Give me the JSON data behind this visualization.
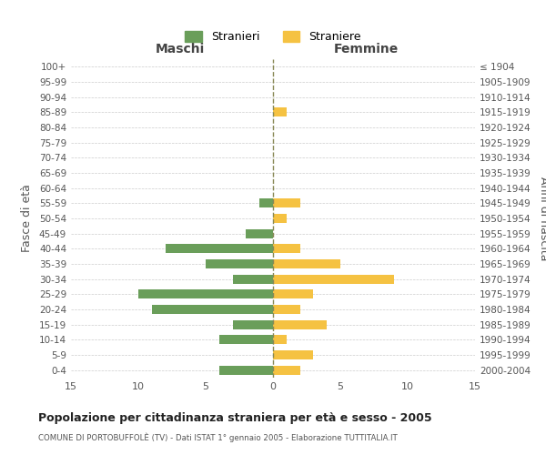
{
  "age_groups": [
    "100+",
    "95-99",
    "90-94",
    "85-89",
    "80-84",
    "75-79",
    "70-74",
    "65-69",
    "60-64",
    "55-59",
    "50-54",
    "45-49",
    "40-44",
    "35-39",
    "30-34",
    "25-29",
    "20-24",
    "15-19",
    "10-14",
    "5-9",
    "0-4"
  ],
  "birth_years": [
    "≤ 1904",
    "1905-1909",
    "1910-1914",
    "1915-1919",
    "1920-1924",
    "1925-1929",
    "1930-1934",
    "1935-1939",
    "1940-1944",
    "1945-1949",
    "1950-1954",
    "1955-1959",
    "1960-1964",
    "1965-1969",
    "1970-1974",
    "1975-1979",
    "1980-1984",
    "1985-1989",
    "1990-1994",
    "1995-1999",
    "2000-2004"
  ],
  "maschi": [
    0,
    0,
    0,
    0,
    0,
    0,
    0,
    0,
    0,
    1,
    0,
    2,
    8,
    5,
    3,
    10,
    9,
    3,
    4,
    0,
    4
  ],
  "femmine": [
    0,
    0,
    0,
    1,
    0,
    0,
    0,
    0,
    0,
    2,
    1,
    0,
    2,
    5,
    9,
    3,
    2,
    4,
    1,
    3,
    2
  ],
  "male_color": "#6a9e5a",
  "female_color": "#f5c242",
  "title": "Popolazione per cittadinanza straniera per età e sesso - 2005",
  "subtitle": "COMUNE DI PORTOBUFFOLÈ (TV) - Dati ISTAT 1° gennaio 2005 - Elaborazione TUTTITALIA.IT",
  "xlabel_left": "Maschi",
  "xlabel_right": "Femmine",
  "ylabel_left": "Fasce di età",
  "ylabel_right": "Anni di nascita",
  "legend_male": "Stranieri",
  "legend_female": "Straniere",
  "xlim": 15,
  "background_color": "#ffffff",
  "grid_color": "#cccccc"
}
